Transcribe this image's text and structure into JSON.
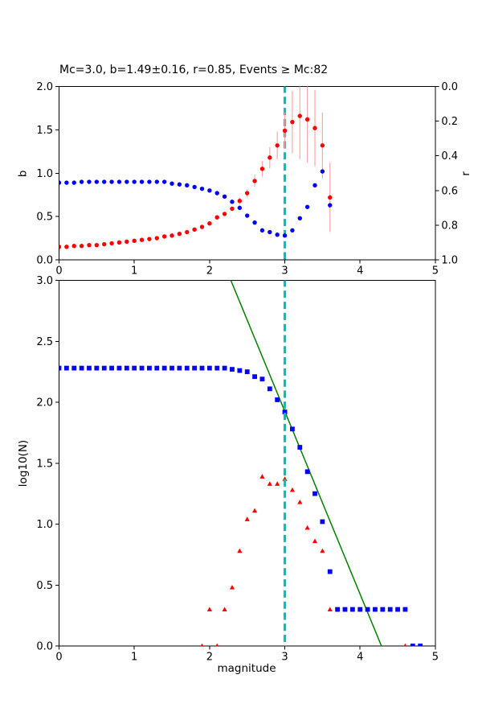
{
  "title": "Mc=3.0, b=1.49±0.16, r=0.85, Events ≥ Mc:82",
  "colors": {
    "b_series": "#0000ff",
    "r_series": "#ff0000",
    "error_bar": "#f7a8a8",
    "fit_line": "#008000",
    "mc_line": "#00bfbf",
    "axis": "#000000"
  },
  "chart_data": [
    {
      "id": "b_and_r_vs_magnitude",
      "type": "scatter",
      "xlim": [
        0,
        5
      ],
      "xticks": [
        "0",
        "1",
        "2",
        "3",
        "4",
        "5"
      ],
      "xtick_values": [
        0,
        1,
        2,
        3,
        4,
        5
      ],
      "left_axis": {
        "label": "b",
        "lim": [
          0,
          2
        ],
        "ticks": [
          "0.0",
          "0.5",
          "1.0",
          "1.5",
          "2.0"
        ],
        "tick_values": [
          0,
          0.5,
          1,
          1.5,
          2
        ]
      },
      "right_axis": {
        "label": "r",
        "lim_top_to_bottom": [
          0,
          1
        ],
        "ticks": [
          "0.0",
          "0.2",
          "0.4",
          "0.6",
          "0.8",
          "1.0"
        ],
        "tick_values": [
          0,
          0.2,
          0.4,
          0.6,
          0.8,
          1
        ]
      },
      "mc_vline_x": 3.0,
      "series": [
        {
          "name": "b-value",
          "axis": "left",
          "marker": "circle",
          "color": "#0000ff",
          "x": [
            0,
            0.1,
            0.2,
            0.3,
            0.4,
            0.5,
            0.6,
            0.7,
            0.8,
            0.9,
            1,
            1.1,
            1.2,
            1.3,
            1.4,
            1.5,
            1.6,
            1.7,
            1.8,
            1.9,
            2,
            2.1,
            2.2,
            2.3,
            2.4,
            2.5,
            2.6,
            2.7,
            2.8,
            2.9,
            3,
            3.1,
            3.2,
            3.3,
            3.4,
            3.5,
            3.6
          ],
          "y": [
            0.89,
            0.89,
            0.89,
            0.9,
            0.9,
            0.9,
            0.9,
            0.9,
            0.9,
            0.9,
            0.9,
            0.9,
            0.9,
            0.9,
            0.9,
            0.88,
            0.87,
            0.86,
            0.84,
            0.82,
            0.8,
            0.77,
            0.73,
            0.67,
            0.6,
            0.51,
            0.43,
            0.34,
            0.32,
            0.29,
            0.28,
            0.34,
            0.48,
            0.61,
            0.86,
            1.02,
            0.63
          ]
        },
        {
          "name": "r-value",
          "axis": "right",
          "marker": "circle",
          "color": "#ff0000",
          "x": [
            0,
            0.1,
            0.2,
            0.3,
            0.4,
            0.5,
            0.6,
            0.7,
            0.8,
            0.9,
            1,
            1.1,
            1.2,
            1.3,
            1.4,
            1.5,
            1.6,
            1.7,
            1.8,
            1.9,
            2,
            2.1,
            2.2,
            2.3,
            2.4,
            2.5,
            2.6,
            2.7,
            2.8,
            2.9,
            3,
            3.1,
            3.2,
            3.3,
            3.4,
            3.5,
            3.6
          ],
          "y": [
            0.925,
            0.925,
            0.92,
            0.92,
            0.915,
            0.915,
            0.91,
            0.905,
            0.9,
            0.895,
            0.89,
            0.885,
            0.88,
            0.875,
            0.865,
            0.86,
            0.85,
            0.84,
            0.825,
            0.81,
            0.79,
            0.755,
            0.735,
            0.705,
            0.66,
            0.615,
            0.545,
            0.475,
            0.41,
            0.34,
            0.255,
            0.205,
            0.17,
            0.19,
            0.24,
            0.34,
            0.64
          ],
          "yerr": [
            0,
            0,
            0,
            0,
            0,
            0,
            0,
            0,
            0,
            0,
            0,
            0,
            0,
            0,
            0,
            0,
            0,
            0,
            0,
            0,
            0,
            0,
            0,
            0,
            0.02,
            0.025,
            0.035,
            0.045,
            0.06,
            0.08,
            0.105,
            0.18,
            0.25,
            0.25,
            0.22,
            0.19,
            0.2
          ]
        }
      ]
    },
    {
      "id": "frequency_magnitude_distribution",
      "type": "scatter",
      "xlabel": "magnitude",
      "ylabel": "log10(N)",
      "xlim": [
        0,
        5
      ],
      "ylim": [
        0,
        3
      ],
      "xticks": [
        "0",
        "1",
        "2",
        "3",
        "4",
        "5"
      ],
      "xtick_values": [
        0,
        1,
        2,
        3,
        4,
        5
      ],
      "yticks": [
        "0.0",
        "0.5",
        "1.0",
        "1.5",
        "2.0",
        "2.5",
        "3.0"
      ],
      "ytick_values": [
        0,
        0.5,
        1,
        1.5,
        2,
        2.5,
        3
      ],
      "mc_vline_x": 3.0,
      "fit_line": {
        "name": "gutenberg-richter-fit",
        "color": "#008000",
        "points": [
          [
            2.283,
            3.0
          ],
          [
            4.284,
            0.0
          ]
        ]
      },
      "series": [
        {
          "name": "cumulative-counts",
          "marker": "square",
          "color": "#0000ff",
          "x": [
            0,
            0.1,
            0.2,
            0.3,
            0.4,
            0.5,
            0.6,
            0.7,
            0.8,
            0.9,
            1,
            1.1,
            1.2,
            1.3,
            1.4,
            1.5,
            1.6,
            1.7,
            1.8,
            1.9,
            2,
            2.1,
            2.2,
            2.3,
            2.4,
            2.5,
            2.6,
            2.7,
            2.8,
            2.9,
            3,
            3.1,
            3.2,
            3.3,
            3.4,
            3.5,
            3.6,
            3.7,
            3.8,
            3.9,
            4,
            4.1,
            4.2,
            4.3,
            4.4,
            4.5,
            4.6,
            4.7,
            4.8
          ],
          "y": [
            2.28,
            2.28,
            2.28,
            2.28,
            2.28,
            2.28,
            2.28,
            2.28,
            2.28,
            2.28,
            2.28,
            2.28,
            2.28,
            2.28,
            2.28,
            2.28,
            2.28,
            2.28,
            2.28,
            2.28,
            2.28,
            2.28,
            2.28,
            2.27,
            2.26,
            2.25,
            2.21,
            2.19,
            2.11,
            2.02,
            1.92,
            1.78,
            1.63,
            1.43,
            1.25,
            1.02,
            0.61,
            0.3,
            0.3,
            0.3,
            0.3,
            0.3,
            0.3,
            0.3,
            0.3,
            0.3,
            0.3,
            0,
            0
          ]
        },
        {
          "name": "incremental-counts",
          "marker": "triangle",
          "color": "#ff0000",
          "points": [
            [
              1.9,
              0
            ],
            [
              2.0,
              0.3
            ],
            [
              2.1,
              0
            ],
            [
              2.2,
              0.3
            ],
            [
              2.3,
              0.48
            ],
            [
              2.4,
              0.78
            ],
            [
              2.5,
              1.04
            ],
            [
              2.6,
              1.11
            ],
            [
              2.7,
              1.39
            ],
            [
              2.8,
              1.33
            ],
            [
              2.9,
              1.33
            ],
            [
              3.0,
              1.37
            ],
            [
              3.1,
              1.28
            ],
            [
              3.2,
              1.18
            ],
            [
              3.3,
              0.97
            ],
            [
              3.4,
              0.86
            ],
            [
              3.5,
              0.78
            ],
            [
              3.6,
              0.3
            ],
            [
              4.6,
              0
            ]
          ]
        }
      ]
    }
  ]
}
